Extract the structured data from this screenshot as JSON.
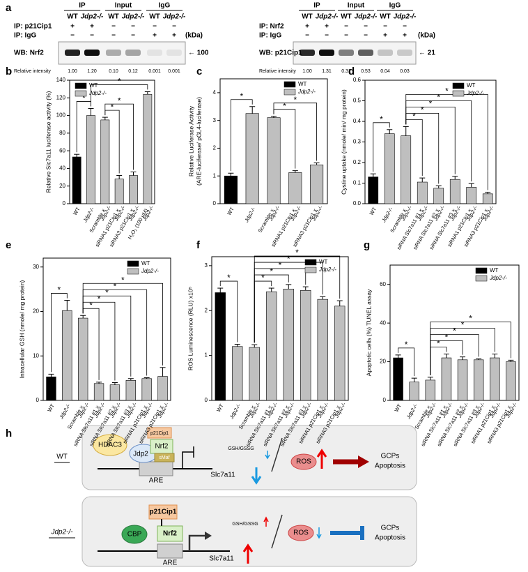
{
  "panel_labels": [
    "a",
    "b",
    "c",
    "d",
    "e",
    "f",
    "g",
    "h"
  ],
  "blots": [
    {
      "headers": [
        "IP",
        "Input",
        "IgG"
      ],
      "lanes": [
        "WT",
        "Jdp2-/-",
        "WT",
        "Jdp2-/-",
        "WT",
        "Jdp2-/-"
      ],
      "rows": [
        {
          "label": "IP: p21Cip1",
          "marks": [
            "+",
            "+",
            "−",
            "−",
            "−",
            "−"
          ]
        },
        {
          "label": "IP: IgG",
          "marks": [
            "−",
            "−",
            "−",
            "−",
            "+",
            "+"
          ]
        }
      ],
      "kda_label": "(kDa)",
      "wb": "WB: Nrf2",
      "size": "← 100",
      "intensity_label": "Relative intensity",
      "intensities": [
        "1.00",
        "1.20",
        "0.10",
        "0.12",
        "0.001",
        "0.001"
      ]
    },
    {
      "headers": [
        "IP",
        "Input",
        "IgG"
      ],
      "lanes": [
        "WT",
        "Jdp2-/-",
        "WT",
        "Jdp2-/-",
        "WT",
        "Jdp2-/-"
      ],
      "rows": [
        {
          "label": "IP: Nrf2",
          "marks": [
            "+",
            "+",
            "−",
            "−",
            "−",
            "−"
          ]
        },
        {
          "label": "IP: IgG",
          "marks": [
            "−",
            "−",
            "−",
            "−",
            "+",
            "+"
          ]
        }
      ],
      "kda_label": "(kDa)",
      "wb": "WB: p21Cip1",
      "size": "← 21",
      "intensity_label": "Relative intensity",
      "intensities": [
        "1.00",
        "1.31",
        "0.31",
        "0.53",
        "0.04",
        "0.03"
      ]
    }
  ],
  "chart_data": [
    {
      "type": "bar",
      "ylabel": [
        "Relative Slc7a11 luciferase activity (%)"
      ],
      "treated_prefix": "Jdp2-/-",
      "categories": [
        "WT",
        "Jdp2-/-",
        "Scramble ×",
        "siRNA1 p21Cip1 ×",
        "siRNA3 p21Cip1 ×",
        "H₂O₂ (100 μM)"
      ],
      "series": [
        {
          "name": "WT",
          "color": "#000000",
          "values": [
            53,
            null,
            null,
            null,
            null,
            null
          ],
          "errors": [
            3,
            null,
            null,
            null,
            null,
            null
          ]
        },
        {
          "name": "Jdp2-/-",
          "color": "#bfbfbf",
          "values": [
            null,
            100,
            95,
            28,
            32,
            124
          ],
          "errors": [
            null,
            8,
            3,
            4,
            4,
            3
          ]
        }
      ],
      "ylim": [
        0,
        140
      ],
      "yticks": [
        0,
        20,
        40,
        60,
        80,
        100,
        120,
        140
      ],
      "legend": "upper left",
      "significance": "*"
    },
    {
      "type": "bar",
      "ylabel": [
        "Relative Luciferase Activity",
        "(ARE-luciferase/ pGL4-luciferase)"
      ],
      "treated_prefix": "Jdp2-/-",
      "categories": [
        "WT",
        "Jdp2-/-",
        "Scramble ×",
        "siRNA1 p21Cip1 ×",
        "siRNA3 p21Cip1 ×"
      ],
      "series": [
        {
          "name": "WT",
          "color": "#000000",
          "values": [
            1.0,
            null,
            null,
            null,
            null
          ],
          "errors": [
            0.1,
            null,
            null,
            null,
            null
          ]
        },
        {
          "name": "Jdp2-/-",
          "color": "#bfbfbf",
          "values": [
            null,
            3.25,
            3.1,
            1.12,
            1.4
          ],
          "errors": [
            null,
            0.25,
            0.05,
            0.07,
            0.07
          ]
        }
      ],
      "ylim": [
        0,
        4.5
      ],
      "yticks": [
        0,
        1,
        2,
        3,
        4
      ],
      "legend": "upper right",
      "significance": "*"
    },
    {
      "type": "bar",
      "ylabel": [
        "Cystine uptake (nmole/ min/ mg protein)"
      ],
      "treated_prefix": "Jdp2-/-",
      "categories": [
        "WT",
        "Jdp2-/-",
        "Scramble ×",
        "siRNA Slc7a11 #1 ×",
        "siRNA Slc7a11 #2 ×",
        "siRNA Slc7a11 #3 ×",
        "siRNA1 p21Cip1 ×",
        "siRNA3 p21Cip1 ×"
      ],
      "series": [
        {
          "name": "WT",
          "color": "#000000",
          "values": [
            0.13,
            null,
            null,
            null,
            null,
            null,
            null,
            null
          ],
          "errors": [
            0.015,
            null,
            null,
            null,
            null,
            null,
            null,
            null
          ]
        },
        {
          "name": "Jdp2-/-",
          "color": "#bfbfbf",
          "values": [
            null,
            0.34,
            0.33,
            0.105,
            0.075,
            0.118,
            0.08,
            0.048
          ],
          "errors": [
            null,
            0.02,
            0.045,
            0.02,
            0.012,
            0.015,
            0.018,
            0.008
          ]
        }
      ],
      "ylim": [
        0,
        0.6
      ],
      "yticks": [
        {
          "value": 0,
          "label": "0.0"
        },
        0.1,
        0.2,
        0.3,
        0.4,
        0.5,
        0.6
      ],
      "legend": "upper right",
      "significance": "*"
    },
    {
      "type": "bar",
      "ylabel": [
        "Intracellular GSH (nmole/ mg protein)"
      ],
      "treated_prefix": "Jdp2-/-",
      "categories": [
        "WT",
        "Jdp2-/-",
        "Scramble ×",
        "siRNA Slc7a11 #1 ×",
        "siRNA Slc7a11 #2 ×",
        "siRNA Slc7a11 #3 ×",
        "siRNA1 p21Cip1 ×",
        "siRNA3 p21Cip1 ×"
      ],
      "series": [
        {
          "name": "WT",
          "color": "#000000",
          "values": [
            5.3,
            null,
            null,
            null,
            null,
            null,
            null,
            null
          ],
          "errors": [
            0.6,
            null,
            null,
            null,
            null,
            null,
            null,
            null
          ]
        },
        {
          "name": "Jdp2-/-",
          "color": "#bfbfbf",
          "values": [
            null,
            20.2,
            18.5,
            3.8,
            3.5,
            4.5,
            4.9,
            5.4
          ],
          "errors": [
            null,
            2.3,
            0.6,
            0.3,
            0.5,
            0.4,
            0.2,
            2
          ]
        }
      ],
      "ylim": [
        0,
        32
      ],
      "yticks": [
        0,
        10,
        20,
        30
      ],
      "legend": "upper right",
      "significance": "*"
    },
    {
      "type": "bar",
      "ylabel": [
        "ROS Luminescence (RLU) x10⁵"
      ],
      "treated_prefix": "Jdp2-/-",
      "categories": [
        "WT",
        "Jdp2-/-",
        "Scramble ×",
        "siRNA Slc7a11 #1 ×",
        "siRNA Slc7a11 #2 ×",
        "siRNA Slc7a11 #3 ×",
        "siRNA1 p21Cip1 ×",
        "siRNA3 p21Cip1 ×"
      ],
      "series": [
        {
          "name": "WT",
          "color": "#000000",
          "values": [
            2.4,
            null,
            null,
            null,
            null,
            null,
            null,
            null
          ],
          "errors": [
            0.1,
            null,
            null,
            null,
            null,
            null,
            null,
            null
          ]
        },
        {
          "name": "Jdp2-/-",
          "color": "#bfbfbf",
          "values": [
            null,
            1.2,
            1.18,
            2.42,
            2.48,
            2.45,
            2.25,
            2.1
          ],
          "errors": [
            null,
            0.05,
            0.06,
            0.08,
            0.1,
            0.08,
            0.06,
            0.12
          ]
        }
      ],
      "ylim": [
        0,
        3.2
      ],
      "yticks": [
        0,
        1,
        2,
        3
      ],
      "legend": "upper right",
      "significance": "*"
    },
    {
      "type": "bar",
      "ylabel": [
        "Apoptotic cells (%) TUNEL assay"
      ],
      "treated_prefix": "Jdp2-/-",
      "categories": [
        "WT",
        "Jdp2-/-",
        "Scramble ×",
        "siRNA Slc7a11 #1 ×",
        "siRNA Slc7a11 #2 ×",
        "siRNA Slc7a11 #3 ×",
        "siRNA1 p21Cip1 ×",
        "siRNA3 p21Cip1 ×"
      ],
      "series": [
        {
          "name": "WT",
          "color": "#000000",
          "values": [
            22,
            null,
            null,
            null,
            null,
            null,
            null,
            null
          ],
          "errors": [
            1.5,
            null,
            null,
            null,
            null,
            null,
            null,
            null
          ]
        },
        {
          "name": "Jdp2-/-",
          "color": "#bfbfbf",
          "values": [
            null,
            9.5,
            10.5,
            22,
            21,
            21,
            22,
            20
          ],
          "errors": [
            null,
            2,
            1.5,
            2,
            1.5,
            0.5,
            2,
            0.8
          ]
        }
      ],
      "ylim": [
        0,
        70
      ],
      "yticks": [
        0,
        20,
        40,
        60
      ],
      "legend": "upper right",
      "significance": "*"
    }
  ],
  "diagram": {
    "rows": [
      {
        "genotype": "WT",
        "factors": [
          "HDAC3",
          "Jdp2",
          "p21Cip1",
          "Nrf2",
          "sMaf"
        ],
        "element": "ARE",
        "gene": "Slc7a11",
        "ratio": "GSH/GSSG",
        "ros": "ROS",
        "outcome": [
          "GCPs",
          "Apoptosis"
        ]
      },
      {
        "genotype": "Jdp2-/-",
        "factors": [
          "CBP",
          "p21Cip1",
          "Nrf2"
        ],
        "element": "ARE",
        "gene": "Slc7a11",
        "ratio": "GSH/GSSG",
        "ros": "ROS",
        "outcome": [
          "GCPs",
          "Apoptosis"
        ]
      }
    ]
  }
}
